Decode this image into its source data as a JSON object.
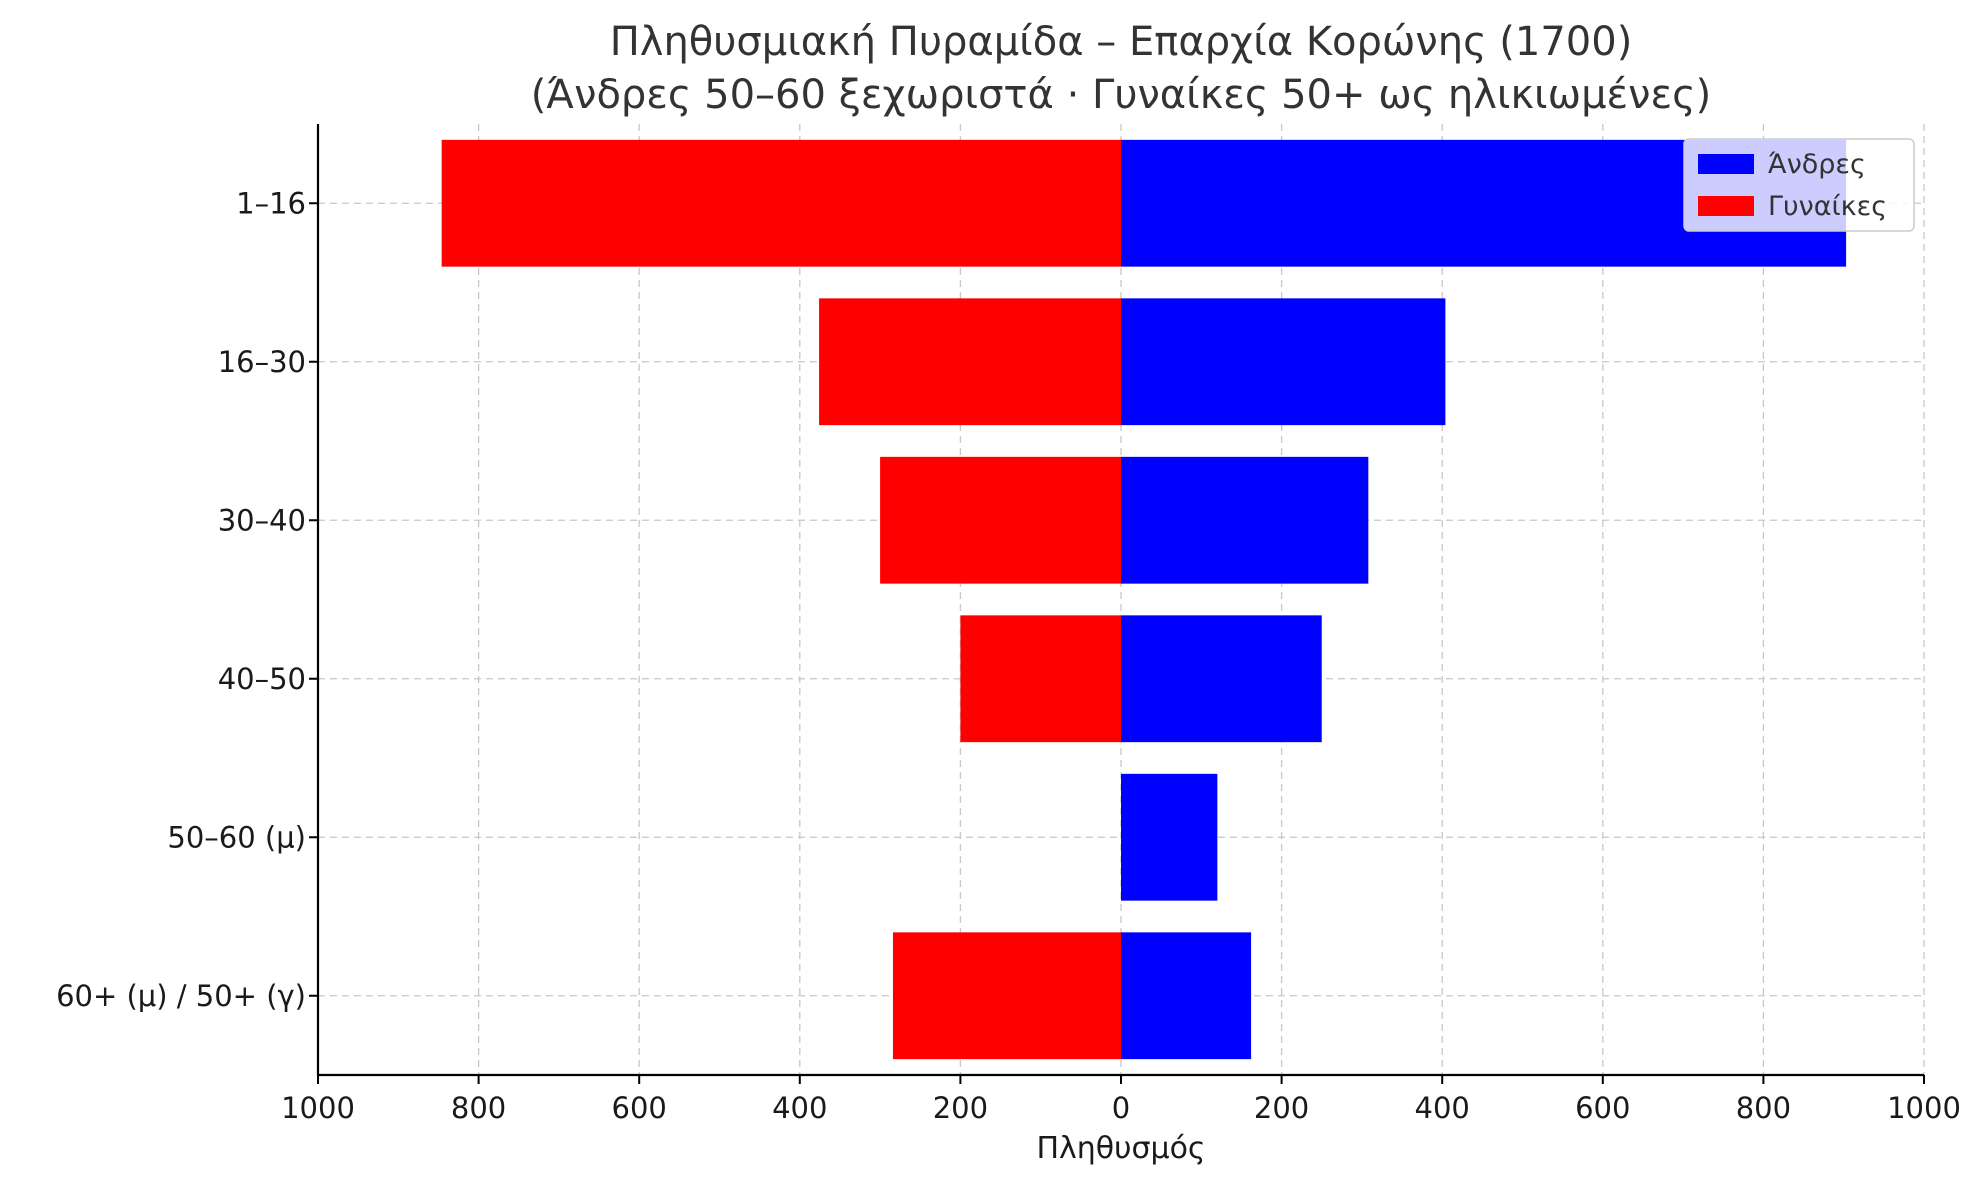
{
  "chart_data": {
    "type": "bar",
    "orientation": "horizontal",
    "title": "Πληθυσμιακή Πυραμίδα – Επαρχία Κορώνης (1700)",
    "subtitle": "(Άνδρες 50–60 ξεχωριστά · Γυναίκες 50+ ως ηλικιωμένες)",
    "xlabel": "Πληθυσμός",
    "ylabel": "",
    "xlim": [
      -1000,
      1000
    ],
    "xticks": [
      -1000,
      -800,
      -600,
      -400,
      -200,
      0,
      200,
      400,
      600,
      800,
      1000
    ],
    "xtick_labels": [
      "1000",
      "800",
      "600",
      "400",
      "200",
      "0",
      "200",
      "400",
      "600",
      "800",
      "1000"
    ],
    "categories": [
      "1–16",
      "16–30",
      "30–40",
      "40–50",
      "50–60 (μ)",
      "60+ (μ) / 50+ (γ)"
    ],
    "series": [
      {
        "name": "Άνδρες",
        "color": "#0000ff",
        "values": [
          903,
          404,
          308,
          250,
          120,
          162
        ]
      },
      {
        "name": "Γυναίκες",
        "color": "#ff0000",
        "values": [
          846,
          376,
          300,
          200,
          0,
          284
        ]
      }
    ],
    "grid": true,
    "legend_position": "top-right"
  }
}
